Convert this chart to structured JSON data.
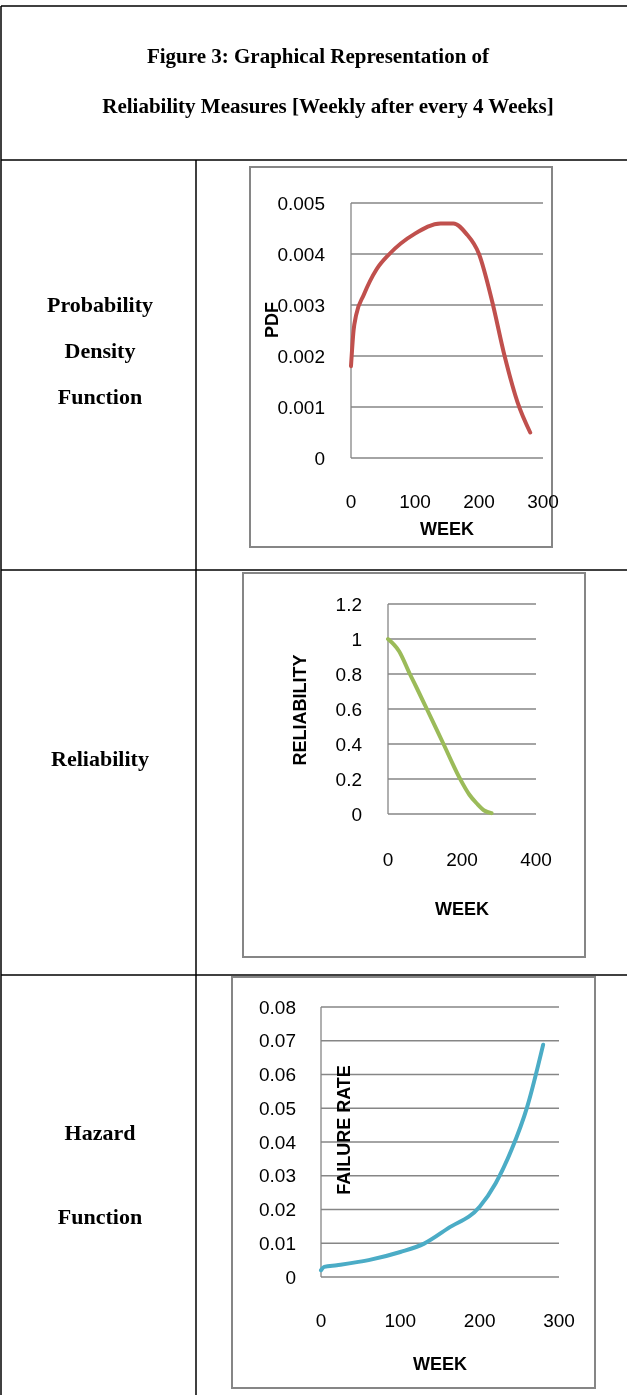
{
  "chart_data": [
    {
      "type": "line",
      "annotations": [
        "Probability Density Function",
        "Figure 3: Graphical Representation of Reliability Measures [Weekly after every 4 Weeks]"
      ],
      "xlabel": "WEEK",
      "ylabel": "PDF",
      "xlim": [
        0,
        300
      ],
      "xticks": [
        0,
        100,
        200,
        300
      ],
      "ylim": [
        0,
        0.005
      ],
      "yticks": [
        0,
        0.001,
        0.002,
        0.003,
        0.004,
        0.005
      ],
      "grid": "y",
      "series": [
        {
          "color": "#c0504d",
          "x": [
            0,
            4,
            8,
            20,
            40,
            60,
            100,
            140,
            160,
            180,
            200,
            220,
            240,
            260,
            280
          ],
          "values": [
            0.0018,
            0.0025,
            0.0028,
            0.0032,
            0.0037,
            0.004,
            0.0044,
            0.0046,
            0.0046,
            0.0044,
            0.004,
            0.0031,
            0.002,
            0.0011,
            0.0005
          ]
        }
      ]
    },
    {
      "type": "line",
      "annotations": [
        "Reliability"
      ],
      "xlabel": "WEEK",
      "ylabel": "RELIABILITY",
      "xlim": [
        0,
        400
      ],
      "xticks": [
        0,
        200,
        400
      ],
      "ylim": [
        0,
        1.2
      ],
      "yticks": [
        0,
        0.2,
        0.4,
        0.6,
        0.8,
        1,
        1.2
      ],
      "grid": "y",
      "series": [
        {
          "color": "#9bbb59",
          "x": [
            0,
            30,
            59,
            80,
            105,
            150,
            195,
            220,
            240,
            260,
            280
          ],
          "values": [
            1,
            0.93,
            0.8,
            0.71,
            0.6,
            0.4,
            0.2,
            0.11,
            0.06,
            0.02,
            0.005
          ]
        }
      ]
    },
    {
      "type": "line",
      "annotations": [
        "Hazard Function"
      ],
      "xlabel": "WEEK",
      "ylabel": "FAILURE RATE",
      "xlim": [
        0,
        300
      ],
      "xticks": [
        0,
        100,
        200,
        300
      ],
      "ylim": [
        0,
        0.08
      ],
      "yticks": [
        0,
        0.01,
        0.02,
        0.03,
        0.04,
        0.05,
        0.06,
        0.07,
        0.08
      ],
      "grid": "y",
      "series": [
        {
          "color": "#4bacc6",
          "x": [
            0,
            4,
            20,
            60,
            100,
            130,
            160,
            200,
            220,
            240,
            260,
            280
          ],
          "values": [
            0.002,
            0.003,
            0.0035,
            0.005,
            0.0074,
            0.0099,
            0.0144,
            0.0208,
            0.0277,
            0.0376,
            0.0505,
            0.0688
          ]
        }
      ]
    }
  ]
}
